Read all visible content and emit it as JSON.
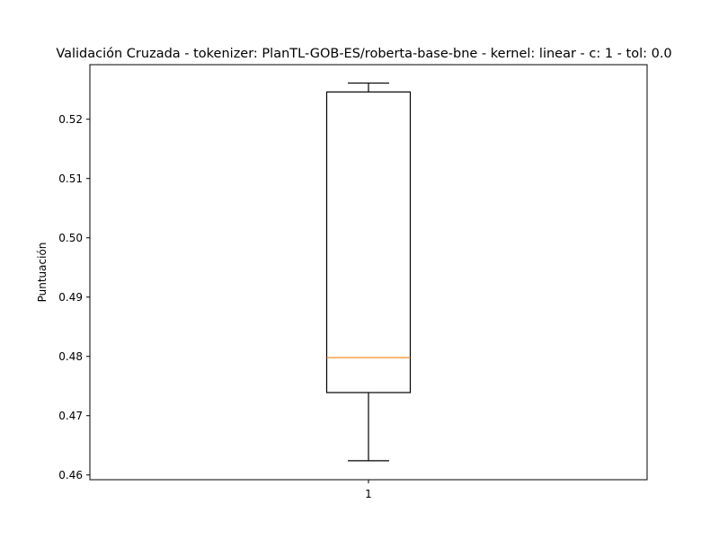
{
  "chart_data": {
    "type": "boxplot",
    "title": "Validación Cruzada - tokenizer: PlanTL-GOB-ES/roberta-base-bne - kernel: linear - c: 1 - tol: 0.0",
    "xlabel": "",
    "ylabel": "Puntuación",
    "ylim": [
      0.4592,
      0.5292
    ],
    "yticks": [
      0.46,
      0.47,
      0.48,
      0.49,
      0.5,
      0.51,
      0.52
    ],
    "ytick_labels": [
      "0.46",
      "0.47",
      "0.48",
      "0.49",
      "0.50",
      "0.51",
      "0.52"
    ],
    "categories": [
      "1"
    ],
    "boxes": [
      {
        "label": "1",
        "whisker_low": 0.4624,
        "q1": 0.4739,
        "median": 0.4798,
        "q3": 0.5246,
        "whisker_high": 0.5261
      }
    ],
    "grid": false,
    "colors": {
      "box": "#000000",
      "median": "#ff7f0e"
    }
  }
}
